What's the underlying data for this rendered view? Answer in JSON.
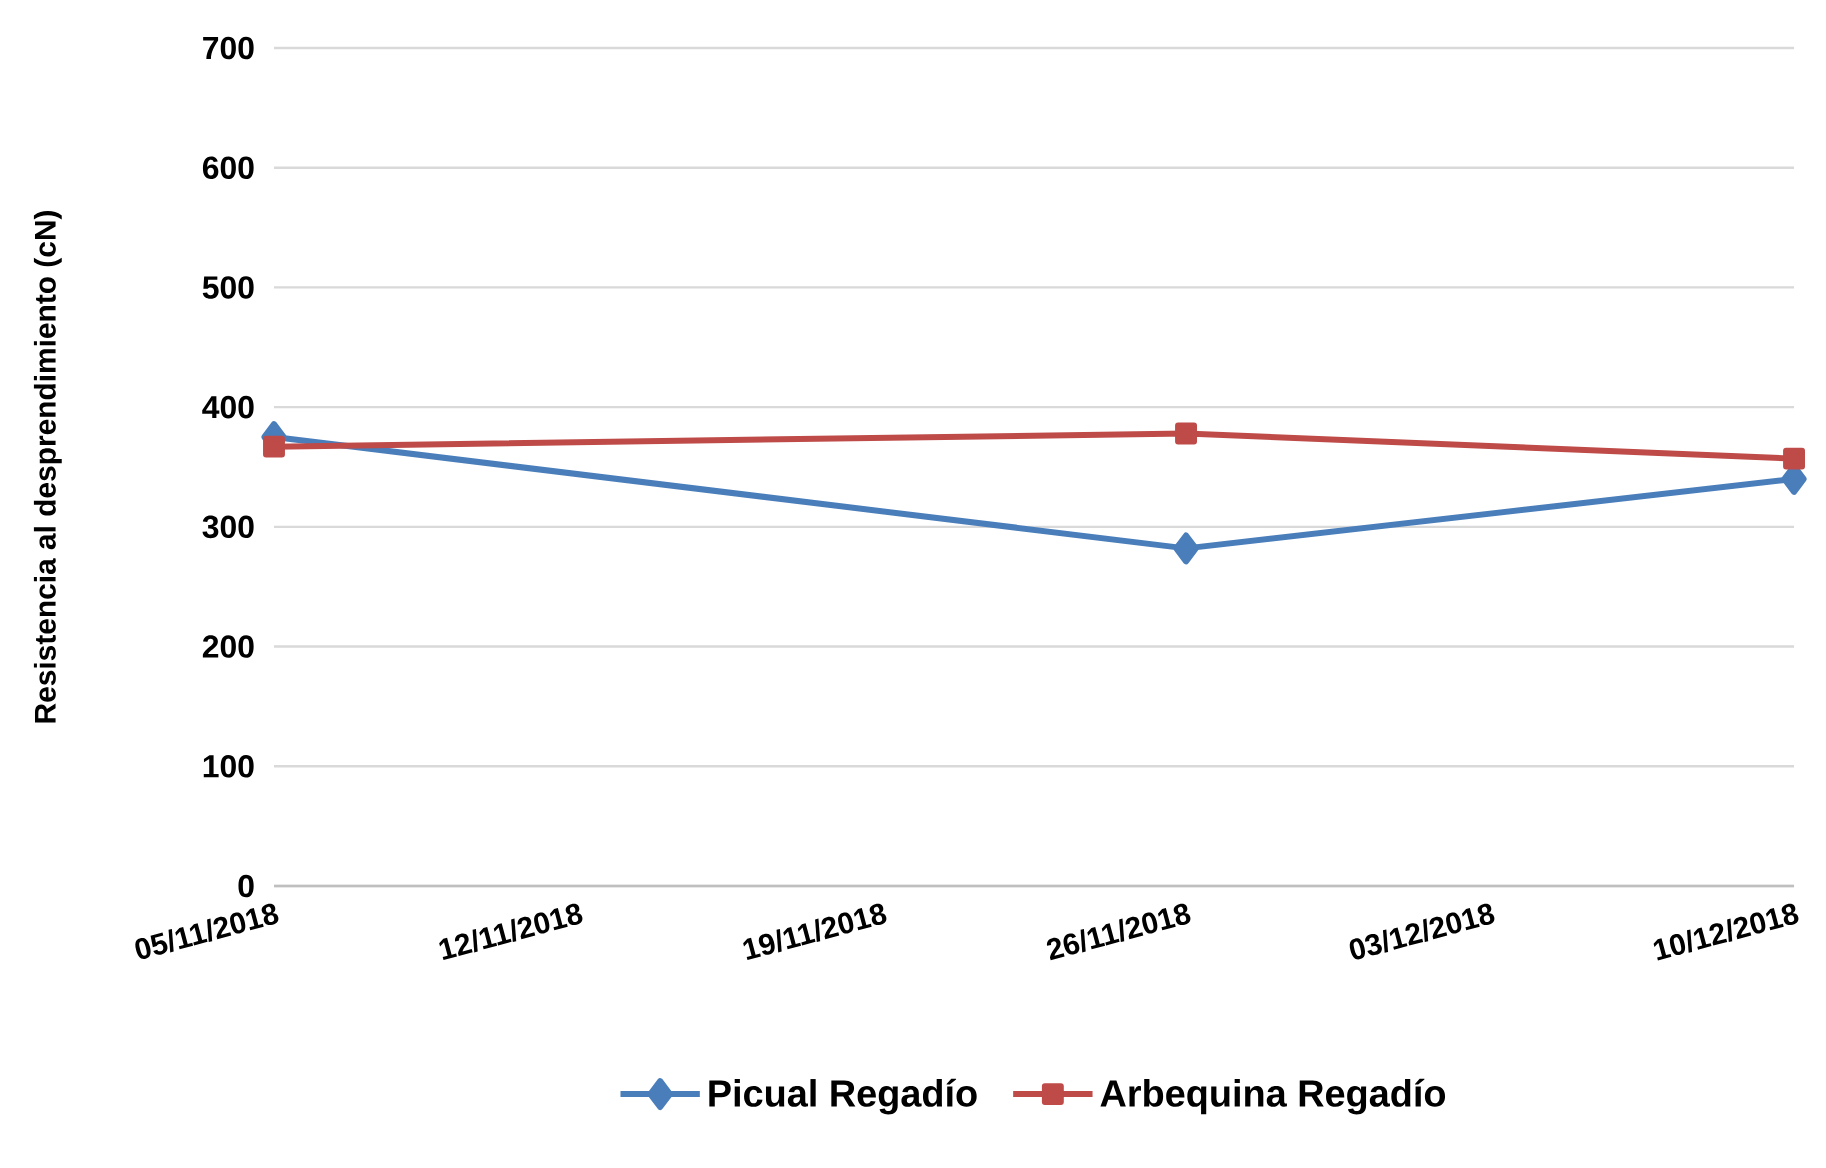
{
  "chart_data": {
    "type": "line",
    "ylabel": "Resistencia al desprendimiento (cN)",
    "x": [
      "2018-11-05",
      "2018-11-26",
      "2018-12-10"
    ],
    "series": [
      {
        "name": "Picual Regadío",
        "color": "#4a7ebb",
        "marker": "diamond",
        "values": [
          375,
          282,
          340
        ]
      },
      {
        "name": "Arbequina Regadío",
        "color": "#be4b48",
        "marker": "square",
        "values": [
          367,
          378,
          357
        ]
      }
    ],
    "xlim": [
      "2018-11-05",
      "2018-12-10"
    ],
    "xticks": [
      {
        "value": "2018-11-05",
        "label": "05/11/2018"
      },
      {
        "value": "2018-11-12",
        "label": "12/11/2018"
      },
      {
        "value": "2018-11-19",
        "label": "19/11/2018"
      },
      {
        "value": "2018-11-26",
        "label": "26/11/2018"
      },
      {
        "value": "2018-12-03",
        "label": "03/12/2018"
      },
      {
        "value": "2018-12-10",
        "label": "10/12/2018"
      }
    ],
    "ylim": [
      0,
      700
    ],
    "yticks": [
      0,
      100,
      200,
      300,
      400,
      500,
      600,
      700
    ],
    "grid": "y",
    "legend": "bottom",
    "line_style": "solid"
  }
}
